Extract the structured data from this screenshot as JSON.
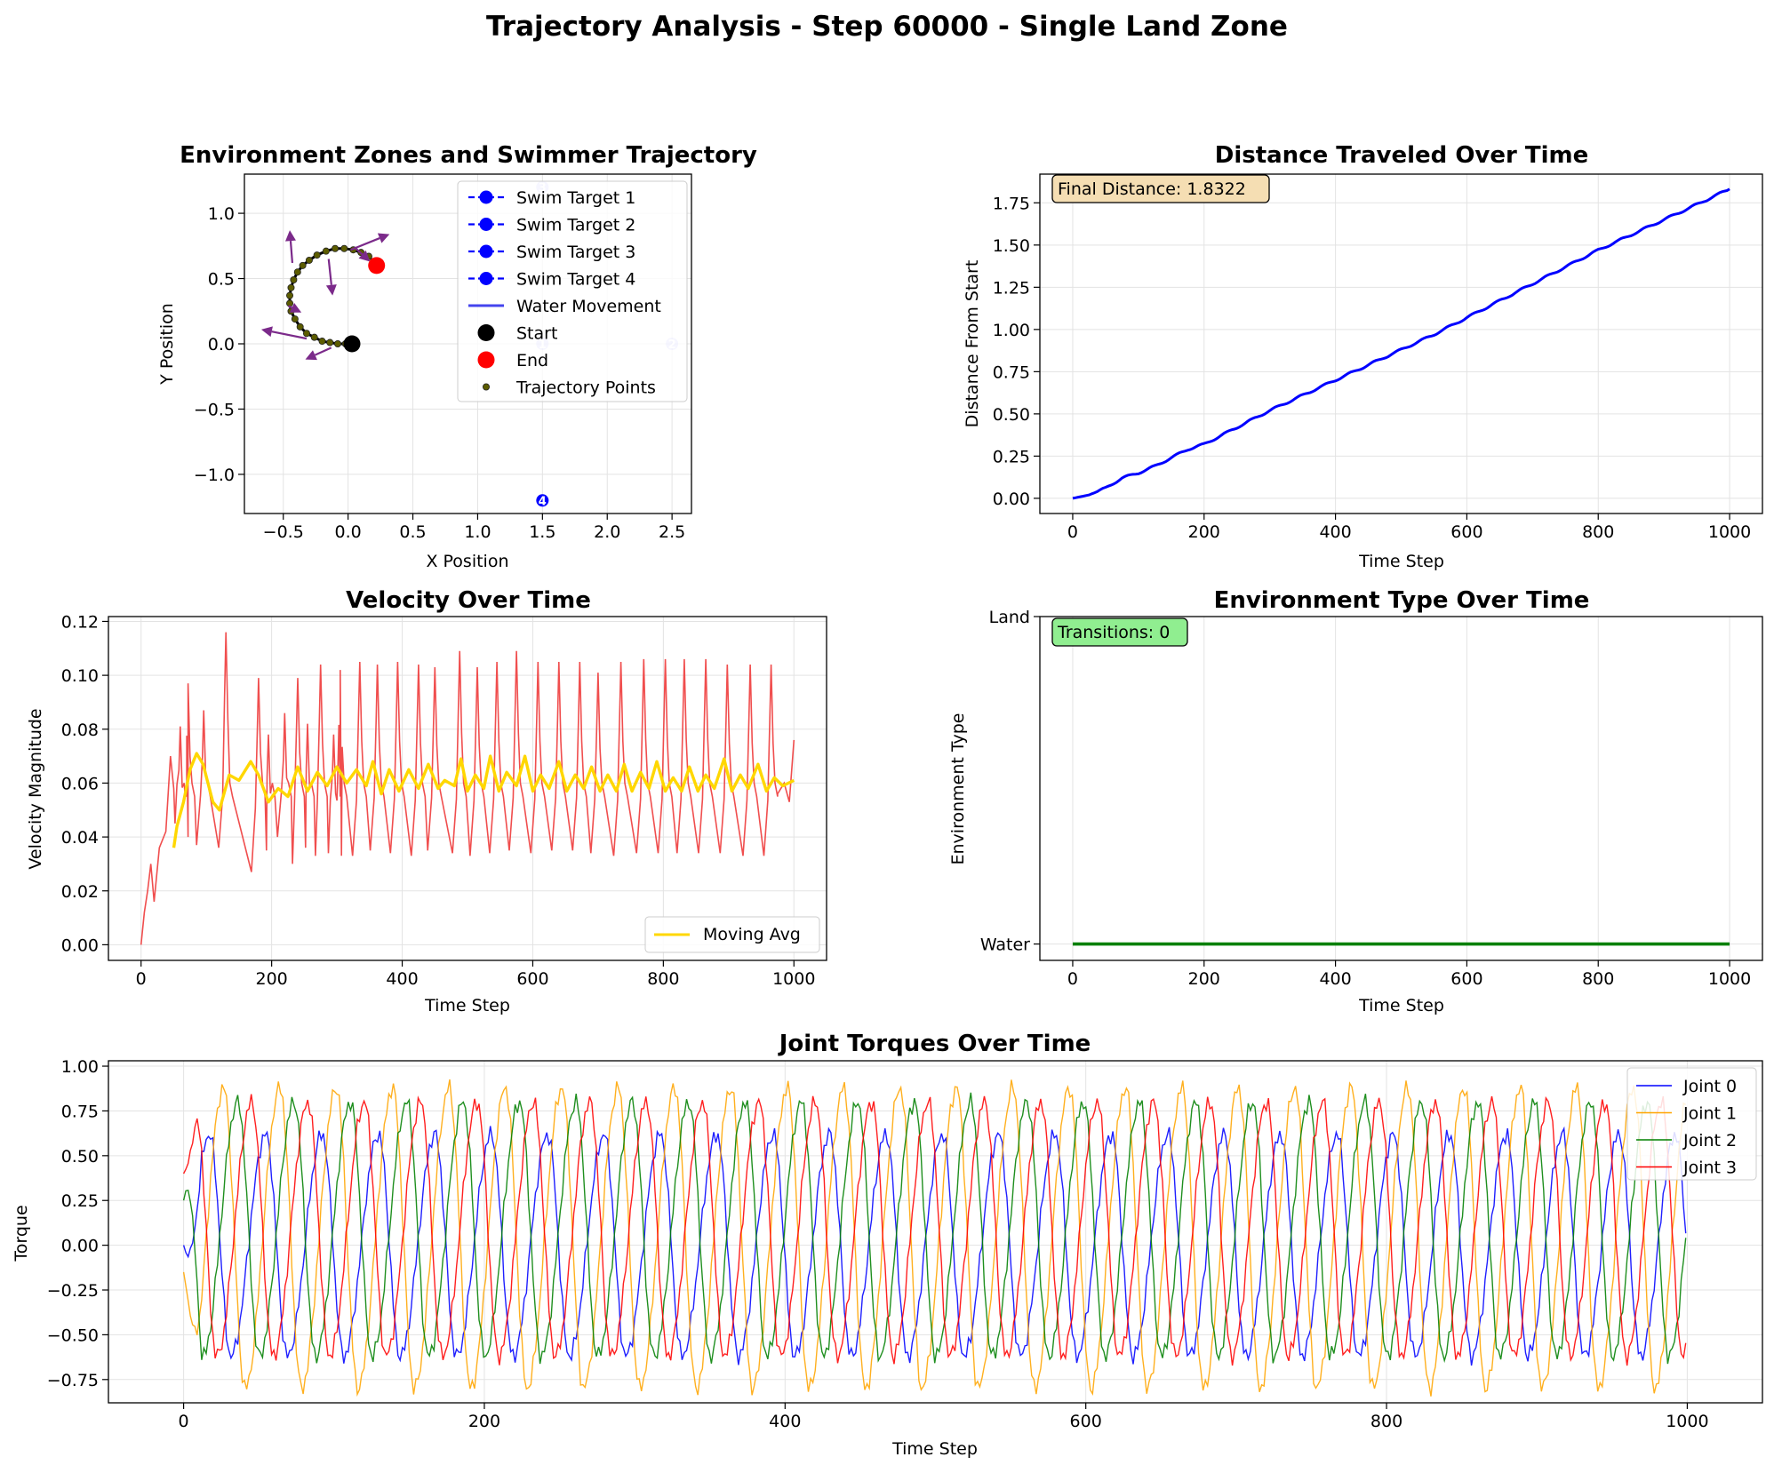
{
  "figure": {
    "suptitle": "Trajectory Analysis - Step 60000 - Single Land Zone"
  },
  "colors": {
    "trajectory": "#000000",
    "trajectory_points": "#5c5c00",
    "arrow": "#7b2a8a",
    "start": "#000000",
    "end": "#ff0000",
    "target": "#0000ff",
    "distance_line": "#0000ff",
    "velocity_raw": "#ef4444",
    "moving_avg": "#ffd700",
    "env_line": "#008000",
    "joint0": "#0000ff",
    "joint1": "#ffa500",
    "joint2": "#008000",
    "joint3": "#ff0000",
    "annot_distance_bg": "#f5deb3",
    "annot_transitions_bg": "#90ee90"
  },
  "chart_data": [
    {
      "type": "scatter",
      "title": "Environment Zones and Swimmer Trajectory",
      "xlabel": "X Position",
      "ylabel": "Y Position",
      "xlim": [
        -0.8,
        2.65
      ],
      "ylim": [
        -1.3,
        1.3
      ],
      "xticks": [
        -0.5,
        0.0,
        0.5,
        1.0,
        1.5,
        2.0,
        2.5
      ],
      "xtick_labels": [
        "−0.5",
        "0.0",
        "0.5",
        "1.0",
        "1.5",
        "2.0",
        "2.5"
      ],
      "yticks": [
        -1.0,
        -0.5,
        0.0,
        0.5,
        1.0
      ],
      "ytick_labels": [
        "−1.0",
        "−0.5",
        "0.0",
        "0.5",
        "1.0"
      ],
      "grid": true,
      "legend_position": "top-right",
      "legend": [
        "Swim Target 1",
        "Swim Target 2",
        "Swim Target 3",
        "Swim Target 4",
        "Water Movement",
        "Start",
        "End",
        "Trajectory Points"
      ],
      "start": [
        0.03,
        0.0
      ],
      "end": [
        0.22,
        0.6
      ],
      "targets": [
        {
          "label": "1",
          "x": 1.5,
          "y": 0.0
        },
        {
          "label": "2",
          "x": 2.5,
          "y": 0.0
        },
        {
          "label": "3",
          "x": 1.5,
          "y": 1.2
        },
        {
          "label": "4",
          "x": 1.5,
          "y": -1.2
        }
      ],
      "trajectory": [
        [
          0.03,
          0.0
        ],
        [
          -0.02,
          0.0
        ],
        [
          -0.08,
          0.0
        ],
        [
          -0.14,
          0.01
        ],
        [
          -0.2,
          0.02
        ],
        [
          -0.26,
          0.05
        ],
        [
          -0.32,
          0.08
        ],
        [
          -0.37,
          0.13
        ],
        [
          -0.41,
          0.19
        ],
        [
          -0.44,
          0.25
        ],
        [
          -0.45,
          0.31
        ],
        [
          -0.45,
          0.37
        ],
        [
          -0.44,
          0.43
        ],
        [
          -0.42,
          0.49
        ],
        [
          -0.39,
          0.55
        ],
        [
          -0.35,
          0.6
        ],
        [
          -0.3,
          0.64
        ],
        [
          -0.24,
          0.68
        ],
        [
          -0.17,
          0.71
        ],
        [
          -0.1,
          0.73
        ],
        [
          -0.03,
          0.73
        ],
        [
          0.04,
          0.72
        ],
        [
          0.1,
          0.7
        ],
        [
          0.16,
          0.67
        ],
        [
          0.22,
          0.6
        ]
      ],
      "arrows": [
        [
          [
            -0.43,
            0.62
          ],
          [
            -0.45,
            0.87
          ]
        ],
        [
          [
            0.02,
            0.72
          ],
          [
            0.32,
            0.84
          ]
        ],
        [
          [
            -0.15,
            0.65
          ],
          [
            -0.12,
            0.37
          ]
        ],
        [
          [
            -0.46,
            0.29
          ],
          [
            -0.36,
            0.24
          ]
        ],
        [
          [
            -0.32,
            0.04
          ],
          [
            -0.67,
            0.11
          ]
        ],
        [
          [
            -0.13,
            -0.03
          ],
          [
            -0.33,
            -0.12
          ]
        ],
        [
          [
            0.05,
            0.74
          ],
          [
            0.17,
            0.63
          ]
        ]
      ]
    },
    {
      "type": "line",
      "title": "Distance Traveled Over Time",
      "xlabel": "Time Step",
      "ylabel": "Distance From Start",
      "xlim": [
        -50,
        1050
      ],
      "ylim": [
        -0.09,
        1.92
      ],
      "xticks": [
        0,
        200,
        400,
        600,
        800,
        1000
      ],
      "yticks": [
        0.0,
        0.25,
        0.5,
        0.75,
        1.0,
        1.25,
        1.5,
        1.75
      ],
      "ytick_labels": [
        "0.00",
        "0.25",
        "0.50",
        "0.75",
        "1.00",
        "1.25",
        "1.50",
        "1.75"
      ],
      "grid": true,
      "annotation": "Final Distance: 1.8322",
      "x": [
        0,
        25,
        50,
        75,
        100,
        125,
        150,
        175,
        200,
        250,
        300,
        350,
        400,
        450,
        500,
        550,
        600,
        650,
        700,
        750,
        800,
        850,
        900,
        950,
        1000
      ],
      "values": [
        0.0,
        0.02,
        0.06,
        0.12,
        0.15,
        0.19,
        0.24,
        0.29,
        0.32,
        0.42,
        0.52,
        0.61,
        0.7,
        0.79,
        0.88,
        0.97,
        1.07,
        1.17,
        1.27,
        1.37,
        1.47,
        1.56,
        1.65,
        1.74,
        1.8322
      ]
    },
    {
      "type": "line",
      "title": "Velocity Over Time",
      "xlabel": "Time Step",
      "ylabel": "Velocity Magnitude",
      "xlim": [
        -50,
        1050
      ],
      "ylim": [
        -0.0058,
        0.1218
      ],
      "xticks": [
        0,
        200,
        400,
        600,
        800,
        1000
      ],
      "yticks": [
        0.0,
        0.02,
        0.04,
        0.06,
        0.08,
        0.1,
        0.12
      ],
      "ytick_labels": [
        "0.00",
        "0.02",
        "0.04",
        "0.06",
        "0.08",
        "0.10",
        "0.12"
      ],
      "grid": true,
      "legend_position": "bottom-right",
      "legend": [
        "Moving Avg"
      ],
      "raw_start": [
        [
          0,
          0.0
        ],
        [
          5,
          0.012
        ],
        [
          10,
          0.02
        ],
        [
          15,
          0.03
        ],
        [
          20,
          0.016
        ],
        [
          28,
          0.036
        ],
        [
          38,
          0.042
        ],
        [
          45,
          0.07
        ],
        [
          50,
          0.058
        ]
      ],
      "raw_peak_times": [
        60,
        72,
        96,
        130,
        180,
        195,
        220,
        240,
        255,
        275,
        295,
        305,
        335,
        362,
        393,
        425,
        450,
        488,
        515,
        545,
        575,
        608,
        640,
        672,
        700,
        735,
        770,
        803,
        832,
        865,
        898,
        933,
        965
      ],
      "raw_peak_values": [
        0.081,
        0.097,
        0.087,
        0.116,
        0.099,
        0.078,
        0.086,
        0.099,
        0.082,
        0.104,
        0.078,
        0.102,
        0.105,
        0.104,
        0.105,
        0.104,
        0.103,
        0.109,
        0.103,
        0.105,
        0.109,
        0.105,
        0.105,
        0.105,
        0.101,
        0.105,
        0.106,
        0.106,
        0.106,
        0.106,
        0.104,
        0.104,
        0.104
      ],
      "raw_trough_values": [
        0.045,
        0.04,
        0.037,
        0.036,
        0.027,
        0.035,
        0.04,
        0.03,
        0.036,
        0.033,
        0.034,
        0.033,
        0.033,
        0.035,
        0.034,
        0.033,
        0.035,
        0.034,
        0.033,
        0.034,
        0.035,
        0.034,
        0.035,
        0.035,
        0.034,
        0.033,
        0.034,
        0.034,
        0.034,
        0.034,
        0.034,
        0.033,
        0.033
      ],
      "raw_end": [
        [
          975,
          0.056
        ],
        [
          985,
          0.06
        ],
        [
          993,
          0.053
        ],
        [
          1000,
          0.076
        ]
      ],
      "moving_avg": [
        [
          50,
          0.036
        ],
        [
          55,
          0.044
        ],
        [
          65,
          0.053
        ],
        [
          75,
          0.065
        ],
        [
          85,
          0.071
        ],
        [
          95,
          0.067
        ],
        [
          110,
          0.053
        ],
        [
          120,
          0.05
        ],
        [
          135,
          0.063
        ],
        [
          150,
          0.061
        ],
        [
          168,
          0.068
        ],
        [
          180,
          0.063
        ],
        [
          195,
          0.053
        ],
        [
          210,
          0.058
        ],
        [
          225,
          0.055
        ],
        [
          240,
          0.066
        ],
        [
          255,
          0.057
        ],
        [
          270,
          0.064
        ],
        [
          285,
          0.059
        ],
        [
          300,
          0.066
        ],
        [
          315,
          0.06
        ],
        [
          330,
          0.065
        ],
        [
          345,
          0.059
        ],
        [
          355,
          0.068
        ],
        [
          368,
          0.056
        ],
        [
          380,
          0.065
        ],
        [
          395,
          0.057
        ],
        [
          410,
          0.065
        ],
        [
          425,
          0.058
        ],
        [
          440,
          0.067
        ],
        [
          455,
          0.058
        ],
        [
          465,
          0.061
        ],
        [
          480,
          0.059
        ],
        [
          490,
          0.069
        ],
        [
          500,
          0.057
        ],
        [
          512,
          0.063
        ],
        [
          525,
          0.058
        ],
        [
          535,
          0.07
        ],
        [
          548,
          0.057
        ],
        [
          560,
          0.064
        ],
        [
          575,
          0.059
        ],
        [
          588,
          0.07
        ],
        [
          600,
          0.057
        ],
        [
          612,
          0.063
        ],
        [
          625,
          0.058
        ],
        [
          640,
          0.068
        ],
        [
          652,
          0.057
        ],
        [
          665,
          0.063
        ],
        [
          678,
          0.058
        ],
        [
          690,
          0.066
        ],
        [
          703,
          0.057
        ],
        [
          715,
          0.063
        ],
        [
          728,
          0.057
        ],
        [
          740,
          0.067
        ],
        [
          752,
          0.057
        ],
        [
          765,
          0.064
        ],
        [
          778,
          0.058
        ],
        [
          790,
          0.068
        ],
        [
          803,
          0.057
        ],
        [
          815,
          0.062
        ],
        [
          828,
          0.057
        ],
        [
          840,
          0.066
        ],
        [
          853,
          0.057
        ],
        [
          865,
          0.063
        ],
        [
          878,
          0.058
        ],
        [
          893,
          0.069
        ],
        [
          905,
          0.057
        ],
        [
          918,
          0.063
        ],
        [
          930,
          0.058
        ],
        [
          945,
          0.067
        ],
        [
          958,
          0.057
        ],
        [
          970,
          0.062
        ],
        [
          983,
          0.059
        ],
        [
          1000,
          0.061
        ]
      ]
    },
    {
      "type": "line",
      "title": "Environment Type Over Time",
      "xlabel": "Time Step",
      "ylabel": "Environment Type",
      "xlim": [
        -50,
        1050
      ],
      "ylim": [
        -0.05,
        1.0
      ],
      "xticks": [
        0,
        200,
        400,
        600,
        800,
        1000
      ],
      "yticks": [
        0,
        1
      ],
      "ytick_labels": [
        "Water",
        "Land"
      ],
      "grid": true,
      "annotation": "Transitions: 0",
      "x": [
        0,
        1000
      ],
      "values": [
        0,
        0
      ]
    },
    {
      "type": "line",
      "title": "Joint Torques Over Time",
      "xlabel": "Time Step",
      "ylabel": "Torque",
      "xlim": [
        -50,
        1050
      ],
      "ylim": [
        -0.88,
        1.03
      ],
      "xticks": [
        0,
        200,
        400,
        600,
        800,
        1000
      ],
      "yticks": [
        -0.75,
        -0.5,
        -0.25,
        0.0,
        0.25,
        0.5,
        0.75,
        1.0
      ],
      "ytick_labels": [
        "−0.75",
        "−0.50",
        "−0.25",
        "0.00",
        "0.25",
        "0.50",
        "0.75",
        "1.00"
      ],
      "grid": true,
      "legend_position": "top-right",
      "legend": [
        "Joint 0",
        "Joint 1",
        "Joint 2",
        "Joint 3"
      ],
      "period": 37.5,
      "series": [
        {
          "name": "Joint 0",
          "amplitude_min": -0.62,
          "amplitude_max": 0.62,
          "phase_offset": 0
        },
        {
          "name": "Joint 1",
          "amplitude_min": -0.8,
          "amplitude_max": 0.88,
          "phase_offset": 9.4
        },
        {
          "name": "Joint 2",
          "amplitude_min": -0.62,
          "amplitude_max": 0.8,
          "phase_offset": 18.8
        },
        {
          "name": "Joint 3",
          "amplitude_min": -0.62,
          "amplitude_max": 0.8,
          "phase_offset": 28.1
        }
      ]
    }
  ]
}
